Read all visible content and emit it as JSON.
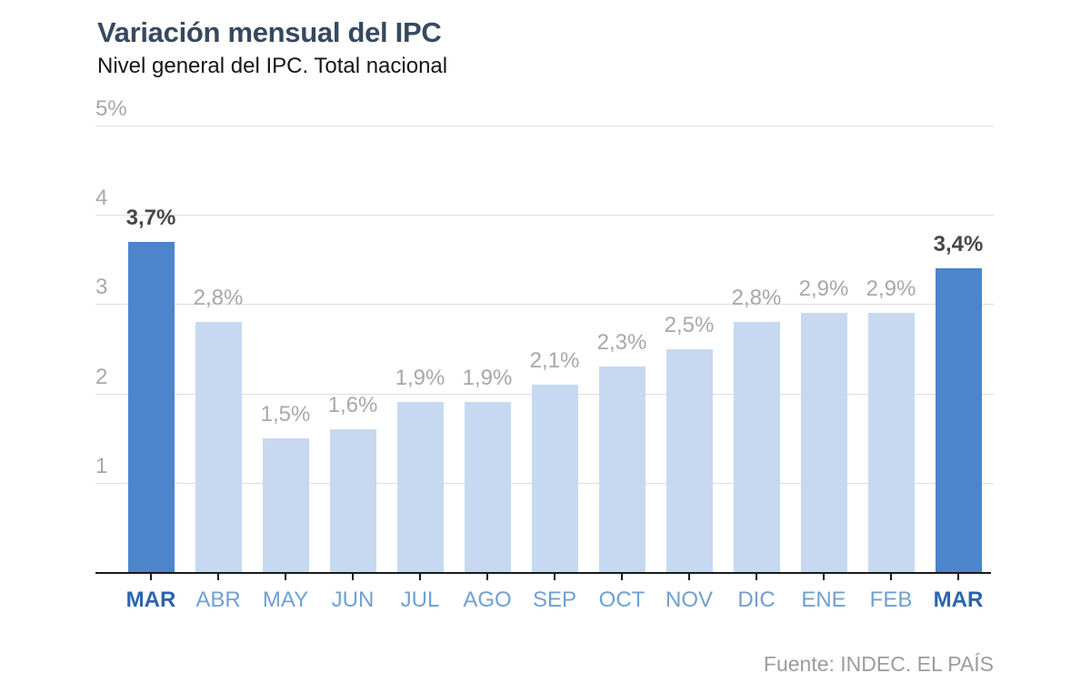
{
  "header": {
    "title": "Variación mensual del IPC",
    "subtitle": "Nivel general del IPC. Total nacional"
  },
  "footer": {
    "source": "Fuente: INDEC. EL PAÍS"
  },
  "colors": {
    "bar_default": "#c6d9f1",
    "bar_highlight": "#4c85cb",
    "value_label_default": "#a8a8a8",
    "value_label_highlight": "#474747",
    "month_label_default": "#71a0d0",
    "month_label_highlight": "#2b64ad",
    "axis_text": "#a8a8a8",
    "gridline": "#dddddd",
    "axis_line": "#1a1a1a",
    "title_text": "#36495e"
  },
  "chart_data": {
    "type": "bar",
    "title": "Variación mensual del IPC",
    "subtitle": "Nivel general del IPC. Total nacional",
    "categories": [
      "MAR",
      "ABR",
      "MAY",
      "JUN",
      "JUL",
      "AGO",
      "SEP",
      "OCT",
      "NOV",
      "DIC",
      "ENE",
      "FEB",
      "MAR"
    ],
    "values": [
      3.7,
      2.8,
      1.5,
      1.6,
      1.9,
      1.9,
      2.1,
      2.3,
      2.5,
      2.8,
      2.9,
      2.9,
      3.4
    ],
    "value_labels": [
      "3,7%",
      "2,8%",
      "1,5%",
      "1,6%",
      "1,9%",
      "1,9%",
      "2,1%",
      "2,3%",
      "2,5%",
      "2,8%",
      "2,9%",
      "2,9%",
      "3,4%"
    ],
    "highlighted": [
      true,
      false,
      false,
      false,
      false,
      false,
      false,
      false,
      false,
      false,
      false,
      false,
      true
    ],
    "y_ticks": [
      {
        "value": 5,
        "label": "5%"
      },
      {
        "value": 4,
        "label": "4"
      },
      {
        "value": 3,
        "label": "3"
      },
      {
        "value": 2,
        "label": "2"
      },
      {
        "value": 1,
        "label": "1"
      }
    ],
    "ylim": [
      0,
      5
    ],
    "xlabel": "",
    "ylabel": "",
    "grid": true,
    "legend": false,
    "source": "Fuente: INDEC. EL PAÍS"
  }
}
